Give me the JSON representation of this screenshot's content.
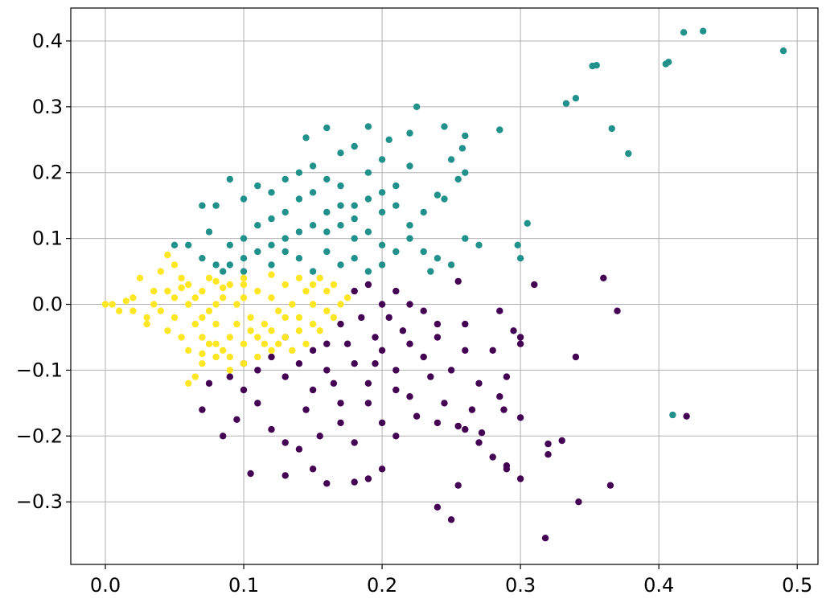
{
  "chart_data": {
    "type": "scatter",
    "title": "",
    "xlabel": "",
    "ylabel": "",
    "xlim": [
      -0.025,
      0.515
    ],
    "ylim": [
      -0.395,
      0.45
    ],
    "xticks": [
      0.0,
      0.1,
      0.2,
      0.3,
      0.4,
      0.5
    ],
    "xtick_labels": [
      "0.0",
      "0.1",
      "0.2",
      "0.3",
      "0.4",
      "0.5"
    ],
    "yticks": [
      -0.3,
      -0.2,
      -0.1,
      0.0,
      0.1,
      0.2,
      0.3,
      0.4
    ],
    "ytick_labels": [
      "−0.3",
      "−0.2",
      "−0.1",
      "0.0",
      "0.1",
      "0.2",
      "0.3",
      "0.4"
    ],
    "grid": true,
    "legend": "none",
    "series": [
      {
        "color": "#440154",
        "points": [
          [
            0.31,
            0.03
          ],
          [
            0.36,
            0.04
          ],
          [
            0.37,
            -0.01
          ],
          [
            0.34,
            -0.08
          ],
          [
            0.42,
            -0.17
          ],
          [
            0.365,
            -0.275
          ],
          [
            0.342,
            -0.3
          ],
          [
            0.318,
            -0.355
          ],
          [
            0.25,
            -0.327
          ],
          [
            0.24,
            -0.308
          ],
          [
            0.3,
            -0.265
          ],
          [
            0.29,
            -0.245
          ],
          [
            0.28,
            -0.232
          ],
          [
            0.255,
            -0.275
          ],
          [
            0.19,
            -0.265
          ],
          [
            0.16,
            -0.272
          ],
          [
            0.105,
            -0.257
          ],
          [
            0.33,
            -0.207
          ],
          [
            0.32,
            -0.228
          ],
          [
            0.32,
            -0.212
          ],
          [
            0.3,
            -0.172
          ],
          [
            0.288,
            -0.16
          ],
          [
            0.285,
            -0.14
          ],
          [
            0.255,
            -0.185
          ],
          [
            0.26,
            -0.19
          ],
          [
            0.272,
            -0.195
          ],
          [
            0.29,
            -0.11
          ],
          [
            0.3,
            -0.06
          ],
          [
            0.295,
            -0.04
          ],
          [
            0.285,
            -0.01
          ],
          [
            0.26,
            -0.03
          ],
          [
            0.255,
            0.035
          ],
          [
            0.24,
            -0.05
          ],
          [
            0.22,
            -0.14
          ],
          [
            0.21,
            -0.2
          ],
          [
            0.2,
            -0.25
          ],
          [
            0.18,
            -0.27
          ],
          [
            0.15,
            -0.25
          ],
          [
            0.13,
            -0.26
          ],
          [
            0.14,
            -0.22
          ],
          [
            0.085,
            -0.2
          ],
          [
            0.095,
            -0.175
          ],
          [
            0.11,
            -0.15
          ],
          [
            0.12,
            -0.19
          ],
          [
            0.07,
            -0.16
          ],
          [
            0.075,
            -0.12
          ],
          [
            0.1,
            -0.13
          ],
          [
            0.13,
            -0.11
          ],
          [
            0.15,
            -0.13
          ],
          [
            0.17,
            -0.15
          ],
          [
            0.19,
            -0.12
          ],
          [
            0.21,
            -0.1
          ],
          [
            0.23,
            -0.08
          ],
          [
            0.25,
            -0.1
          ],
          [
            0.27,
            -0.12
          ],
          [
            0.175,
            -0.06
          ],
          [
            0.195,
            -0.05
          ],
          [
            0.215,
            -0.04
          ],
          [
            0.18,
            -0.09
          ],
          [
            0.16,
            -0.1
          ],
          [
            0.14,
            -0.09
          ],
          [
            0.2,
            -0.07
          ],
          [
            0.22,
            -0.06
          ],
          [
            0.235,
            -0.11
          ],
          [
            0.245,
            -0.15
          ],
          [
            0.18,
            0.02
          ],
          [
            0.19,
            0.03
          ],
          [
            0.2,
            0.0
          ],
          [
            0.205,
            -0.02
          ],
          [
            0.17,
            -0.03
          ],
          [
            0.16,
            -0.06
          ],
          [
            0.15,
            -0.07
          ],
          [
            0.12,
            -0.08
          ],
          [
            0.11,
            -0.1
          ],
          [
            0.13,
            -0.05
          ],
          [
            0.185,
            -0.02
          ],
          [
            0.195,
            -0.09
          ],
          [
            0.21,
            -0.13
          ],
          [
            0.165,
            -0.12
          ],
          [
            0.145,
            -0.16
          ],
          [
            0.225,
            -0.17
          ],
          [
            0.265,
            -0.16
          ],
          [
            0.3,
            -0.05
          ],
          [
            0.28,
            -0.07
          ],
          [
            0.26,
            -0.07
          ],
          [
            0.24,
            -0.03
          ],
          [
            0.23,
            -0.01
          ],
          [
            0.22,
            0.0
          ],
          [
            0.21,
            0.02
          ],
          [
            0.19,
            -0.15
          ],
          [
            0.17,
            -0.18
          ],
          [
            0.155,
            -0.2
          ],
          [
            0.13,
            -0.21
          ],
          [
            0.1,
            -0.09
          ],
          [
            0.09,
            -0.11
          ],
          [
            0.24,
            -0.18
          ],
          [
            0.27,
            -0.21
          ],
          [
            0.29,
            -0.25
          ],
          [
            0.2,
            -0.18
          ],
          [
            0.18,
            -0.21
          ]
        ]
      },
      {
        "color": "#21918c",
        "points": [
          [
            0.49,
            0.385
          ],
          [
            0.432,
            0.415
          ],
          [
            0.418,
            0.413
          ],
          [
            0.407,
            0.368
          ],
          [
            0.405,
            0.365
          ],
          [
            0.355,
            0.363
          ],
          [
            0.352,
            0.362
          ],
          [
            0.34,
            0.313
          ],
          [
            0.333,
            0.305
          ],
          [
            0.366,
            0.267
          ],
          [
            0.378,
            0.229
          ],
          [
            0.41,
            -0.168
          ],
          [
            0.285,
            0.265
          ],
          [
            0.305,
            0.123
          ],
          [
            0.298,
            0.09
          ],
          [
            0.3,
            0.07
          ],
          [
            0.26,
            0.256
          ],
          [
            0.258,
            0.237
          ],
          [
            0.245,
            0.27
          ],
          [
            0.225,
            0.3
          ],
          [
            0.22,
            0.26
          ],
          [
            0.205,
            0.25
          ],
          [
            0.19,
            0.27
          ],
          [
            0.16,
            0.268
          ],
          [
            0.145,
            0.253
          ],
          [
            0.25,
            0.22
          ],
          [
            0.255,
            0.19
          ],
          [
            0.26,
            0.2
          ],
          [
            0.24,
            0.166
          ],
          [
            0.245,
            0.16
          ],
          [
            0.23,
            0.14
          ],
          [
            0.22,
            0.12
          ],
          [
            0.26,
            0.1
          ],
          [
            0.27,
            0.09
          ],
          [
            0.25,
            0.06
          ],
          [
            0.235,
            0.05
          ],
          [
            0.22,
            0.21
          ],
          [
            0.2,
            0.22
          ],
          [
            0.18,
            0.24
          ],
          [
            0.17,
            0.23
          ],
          [
            0.19,
            0.2
          ],
          [
            0.2,
            0.17
          ],
          [
            0.21,
            0.15
          ],
          [
            0.18,
            0.15
          ],
          [
            0.17,
            0.18
          ],
          [
            0.16,
            0.19
          ],
          [
            0.15,
            0.21
          ],
          [
            0.14,
            0.2
          ],
          [
            0.13,
            0.19
          ],
          [
            0.12,
            0.17
          ],
          [
            0.11,
            0.18
          ],
          [
            0.1,
            0.16
          ],
          [
            0.09,
            0.19
          ],
          [
            0.08,
            0.15
          ],
          [
            0.07,
            0.15
          ],
          [
            0.075,
            0.11
          ],
          [
            0.06,
            0.09
          ],
          [
            0.05,
            0.09
          ],
          [
            0.07,
            0.07
          ],
          [
            0.08,
            0.06
          ],
          [
            0.09,
            0.09
          ],
          [
            0.1,
            0.1
          ],
          [
            0.11,
            0.12
          ],
          [
            0.12,
            0.13
          ],
          [
            0.13,
            0.14
          ],
          [
            0.14,
            0.16
          ],
          [
            0.15,
            0.17
          ],
          [
            0.16,
            0.14
          ],
          [
            0.17,
            0.12
          ],
          [
            0.18,
            0.1
          ],
          [
            0.19,
            0.11
          ],
          [
            0.2,
            0.09
          ],
          [
            0.21,
            0.08
          ],
          [
            0.22,
            0.1
          ],
          [
            0.23,
            0.08
          ],
          [
            0.24,
            0.07
          ],
          [
            0.15,
            0.12
          ],
          [
            0.14,
            0.11
          ],
          [
            0.13,
            0.1
          ],
          [
            0.12,
            0.09
          ],
          [
            0.11,
            0.08
          ],
          [
            0.1,
            0.07
          ],
          [
            0.09,
            0.06
          ],
          [
            0.085,
            0.05
          ],
          [
            0.1,
            0.05
          ],
          [
            0.12,
            0.06
          ],
          [
            0.14,
            0.07
          ],
          [
            0.16,
            0.08
          ],
          [
            0.18,
            0.07
          ],
          [
            0.2,
            0.06
          ],
          [
            0.19,
            0.05
          ],
          [
            0.17,
            0.06
          ],
          [
            0.15,
            0.05
          ],
          [
            0.13,
            0.08
          ],
          [
            0.16,
            0.11
          ],
          [
            0.18,
            0.13
          ],
          [
            0.2,
            0.14
          ],
          [
            0.21,
            0.18
          ],
          [
            0.19,
            0.16
          ],
          [
            0.17,
            0.15
          ]
        ]
      },
      {
        "color": "#fde725",
        "points": [
          [
            0.0,
            0.0
          ],
          [
            0.005,
            0.0
          ],
          [
            0.01,
            -0.01
          ],
          [
            0.02,
            0.01
          ],
          [
            0.025,
            0.04
          ],
          [
            0.03,
            -0.02
          ],
          [
            0.035,
            0.02
          ],
          [
            0.04,
            0.05
          ],
          [
            0.045,
            0.075
          ],
          [
            0.05,
            0.06
          ],
          [
            0.055,
            0.04
          ],
          [
            0.06,
            -0.12
          ],
          [
            0.065,
            -0.11
          ],
          [
            0.07,
            -0.09
          ],
          [
            0.075,
            -0.06
          ],
          [
            0.08,
            -0.08
          ],
          [
            0.085,
            -0.07
          ],
          [
            0.09,
            -0.1
          ],
          [
            0.1,
            -0.09
          ],
          [
            0.11,
            -0.08
          ],
          [
            0.12,
            -0.07
          ],
          [
            0.13,
            -0.05
          ],
          [
            0.14,
            -0.04
          ],
          [
            0.15,
            -0.03
          ],
          [
            0.16,
            -0.01
          ],
          [
            0.17,
            0.0
          ],
          [
            0.175,
            0.01
          ],
          [
            0.165,
            0.03
          ],
          [
            0.155,
            0.04
          ],
          [
            0.14,
            0.04
          ],
          [
            0.12,
            0.045
          ],
          [
            0.1,
            0.04
          ],
          [
            0.08,
            0.035
          ],
          [
            0.06,
            0.03
          ],
          [
            0.05,
            0.01
          ],
          [
            0.04,
            -0.01
          ],
          [
            0.03,
            -0.03
          ],
          [
            0.045,
            -0.04
          ],
          [
            0.055,
            -0.05
          ],
          [
            0.065,
            -0.03
          ],
          [
            0.075,
            -0.01
          ],
          [
            0.085,
            0.01
          ],
          [
            0.095,
            0.0
          ],
          [
            0.105,
            -0.02
          ],
          [
            0.115,
            -0.03
          ],
          [
            0.125,
            -0.01
          ],
          [
            0.135,
            0.0
          ],
          [
            0.145,
            0.02
          ],
          [
            0.11,
            0.02
          ],
          [
            0.09,
            0.03
          ],
          [
            0.07,
            0.02
          ],
          [
            0.06,
            0.0
          ],
          [
            0.05,
            -0.02
          ],
          [
            0.06,
            -0.07
          ],
          [
            0.07,
            -0.05
          ],
          [
            0.08,
            -0.03
          ],
          [
            0.09,
            -0.05
          ],
          [
            0.1,
            -0.06
          ],
          [
            0.11,
            -0.05
          ],
          [
            0.12,
            -0.04
          ],
          [
            0.13,
            -0.02
          ],
          [
            0.15,
            0.0
          ],
          [
            0.16,
            0.02
          ],
          [
            0.14,
            -0.02
          ],
          [
            0.1,
            0.01
          ],
          [
            0.08,
            0.0
          ],
          [
            0.07,
            -0.02
          ],
          [
            0.035,
            0.0
          ],
          [
            0.045,
            0.02
          ],
          [
            0.055,
            0.025
          ],
          [
            0.065,
            0.01
          ],
          [
            0.02,
            -0.01
          ],
          [
            0.015,
            0.005
          ],
          [
            0.095,
            -0.03
          ],
          [
            0.105,
            -0.04
          ],
          [
            0.115,
            -0.06
          ],
          [
            0.125,
            -0.06
          ],
          [
            0.09,
            -0.08
          ],
          [
            0.08,
            -0.06
          ],
          [
            0.07,
            -0.075
          ],
          [
            0.12,
            0.01
          ],
          [
            0.13,
            0.03
          ],
          [
            0.15,
            0.03
          ],
          [
            0.165,
            -0.02
          ],
          [
            0.155,
            -0.04
          ],
          [
            0.145,
            -0.06
          ],
          [
            0.135,
            -0.07
          ],
          [
            0.1,
            0.03
          ],
          [
            0.085,
            0.025
          ],
          [
            0.075,
            0.04
          ]
        ]
      }
    ]
  }
}
